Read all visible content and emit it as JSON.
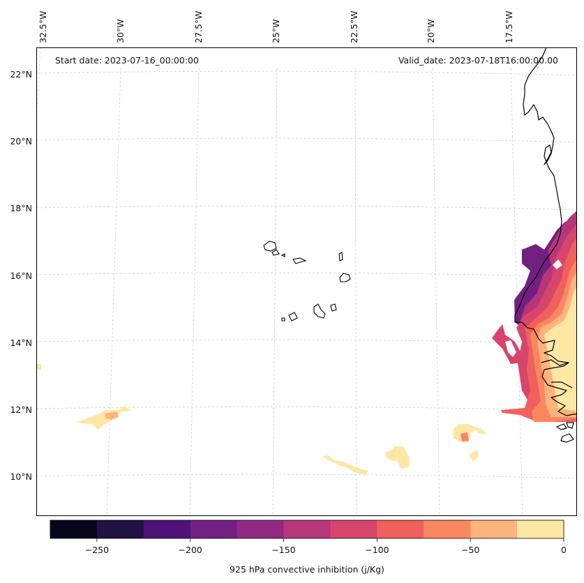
{
  "header": {
    "start_date": "Start date: 2023-07-16_00:00:00",
    "valid_date": "Valid_date: 2023-07-18T16:00:00.00"
  },
  "longitude_labels": [
    "32.5°W",
    "30°W",
    "27.5°W",
    "25°W",
    "22.5°W",
    "20°W",
    "17.5°W"
  ],
  "latitude_labels": [
    "22°N",
    "20°N",
    "18°N",
    "16°N",
    "14°N",
    "12°N",
    "10°N"
  ],
  "colorbar": {
    "label": "925 hPa convective inhibition (j/Kg)",
    "tick_labels": [
      "−250",
      "−200",
      "−150",
      "−100",
      "−50",
      "0"
    ],
    "levels": [
      -275,
      -250,
      -225,
      -200,
      -175,
      -150,
      -125,
      -100,
      -75,
      -50,
      -25,
      0
    ],
    "colors": [
      "#07061b",
      "#211244",
      "#4f117a",
      "#711f81",
      "#912a80",
      "#b63679",
      "#d8456c",
      "#f0605d",
      "#fb8760",
      "#feb47b",
      "#fde7a5"
    ]
  },
  "colors": {
    "coastline": "#000000",
    "gridline": "#cfcfcf"
  }
}
